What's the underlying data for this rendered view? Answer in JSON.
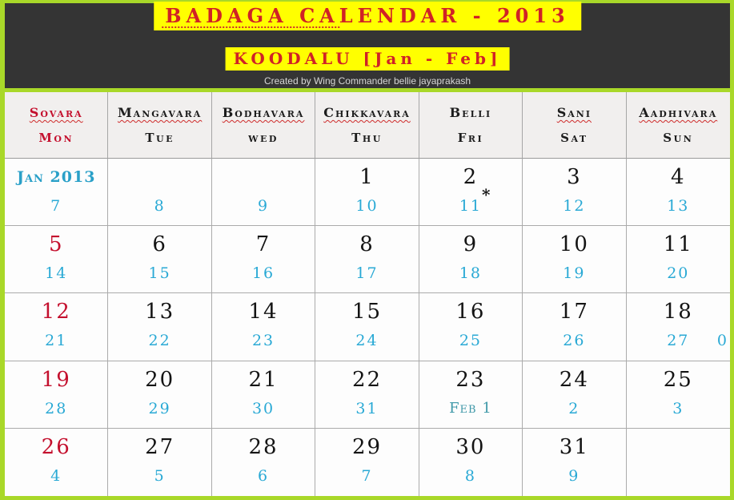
{
  "header": {
    "title": "BADAGA CALENDAR - 2013",
    "subtitle": "KOODALU [Jan - Feb]",
    "credit": "Created by Wing Commander bellie jayaprakash"
  },
  "colors": {
    "frame_green": "#a9d829",
    "banner_bg": "#343434",
    "highlight_yellow": "#ffff00",
    "title_red": "#d02226",
    "date_red": "#d11f2f",
    "date_black": "#141414",
    "date_cyan": "#29a9d5",
    "month_cyan": "#2aa0c8",
    "month_teal": "#3e98a8"
  },
  "calendar": {
    "day_headers": [
      {
        "badaga": "Sovara",
        "english": "Mon",
        "red": true,
        "underline": true
      },
      {
        "badaga": "Mangavara",
        "english": "Tue",
        "red": false,
        "underline": true
      },
      {
        "badaga": "Bodhavara",
        "english": "wed",
        "red": false,
        "underline": true
      },
      {
        "badaga": "Chikkavara",
        "english": "Thu",
        "red": false,
        "underline": true
      },
      {
        "badaga": "Belli",
        "english": "Fri",
        "red": false,
        "underline": false
      },
      {
        "badaga": "Sani",
        "english": "Sat",
        "red": false,
        "underline": true
      },
      {
        "badaga": "Aadhivara",
        "english": "Sun",
        "red": false,
        "underline": true
      }
    ],
    "weeks": [
      [
        {
          "main": "Jan 2013",
          "main_style": "month",
          "sub": "7"
        },
        {
          "main": "",
          "sub": "8"
        },
        {
          "main": "",
          "sub": "9"
        },
        {
          "main": "1",
          "sub": "10"
        },
        {
          "main": "2",
          "sub": "11",
          "note": "*"
        },
        {
          "main": "3",
          "sub": "12"
        },
        {
          "main": "4",
          "sub": "13"
        }
      ],
      [
        {
          "main": "5",
          "main_style": "red",
          "sub": "14"
        },
        {
          "main": "6",
          "sub": "15"
        },
        {
          "main": "7",
          "sub": "16"
        },
        {
          "main": "8",
          "sub": "17"
        },
        {
          "main": "9",
          "sub": "18"
        },
        {
          "main": "10",
          "sub": "19"
        },
        {
          "main": "11",
          "sub": "20"
        }
      ],
      [
        {
          "main": "12",
          "main_style": "red",
          "sub": "21"
        },
        {
          "main": "13",
          "sub": "22"
        },
        {
          "main": "14",
          "sub": "23"
        },
        {
          "main": "15",
          "sub": "24"
        },
        {
          "main": "16",
          "sub": "25"
        },
        {
          "main": "17",
          "sub": "26"
        },
        {
          "main": "18",
          "sub": "27",
          "extra": "0"
        }
      ],
      [
        {
          "main": "19",
          "main_style": "red",
          "sub": "28"
        },
        {
          "main": "20",
          "sub": "29"
        },
        {
          "main": "21",
          "sub": "30"
        },
        {
          "main": "22",
          "sub": "31"
        },
        {
          "main": "23",
          "sub": "Feb 1",
          "sub_style": "month"
        },
        {
          "main": "24",
          "sub": "2"
        },
        {
          "main": "25",
          "sub": "3"
        }
      ],
      [
        {
          "main": "26",
          "main_style": "red",
          "sub": "4"
        },
        {
          "main": "27",
          "sub": "5"
        },
        {
          "main": "28",
          "sub": "6"
        },
        {
          "main": "29",
          "sub": "7"
        },
        {
          "main": "30",
          "sub": "8"
        },
        {
          "main": "31",
          "sub": "9"
        },
        {
          "main": "",
          "sub": ""
        }
      ]
    ]
  }
}
